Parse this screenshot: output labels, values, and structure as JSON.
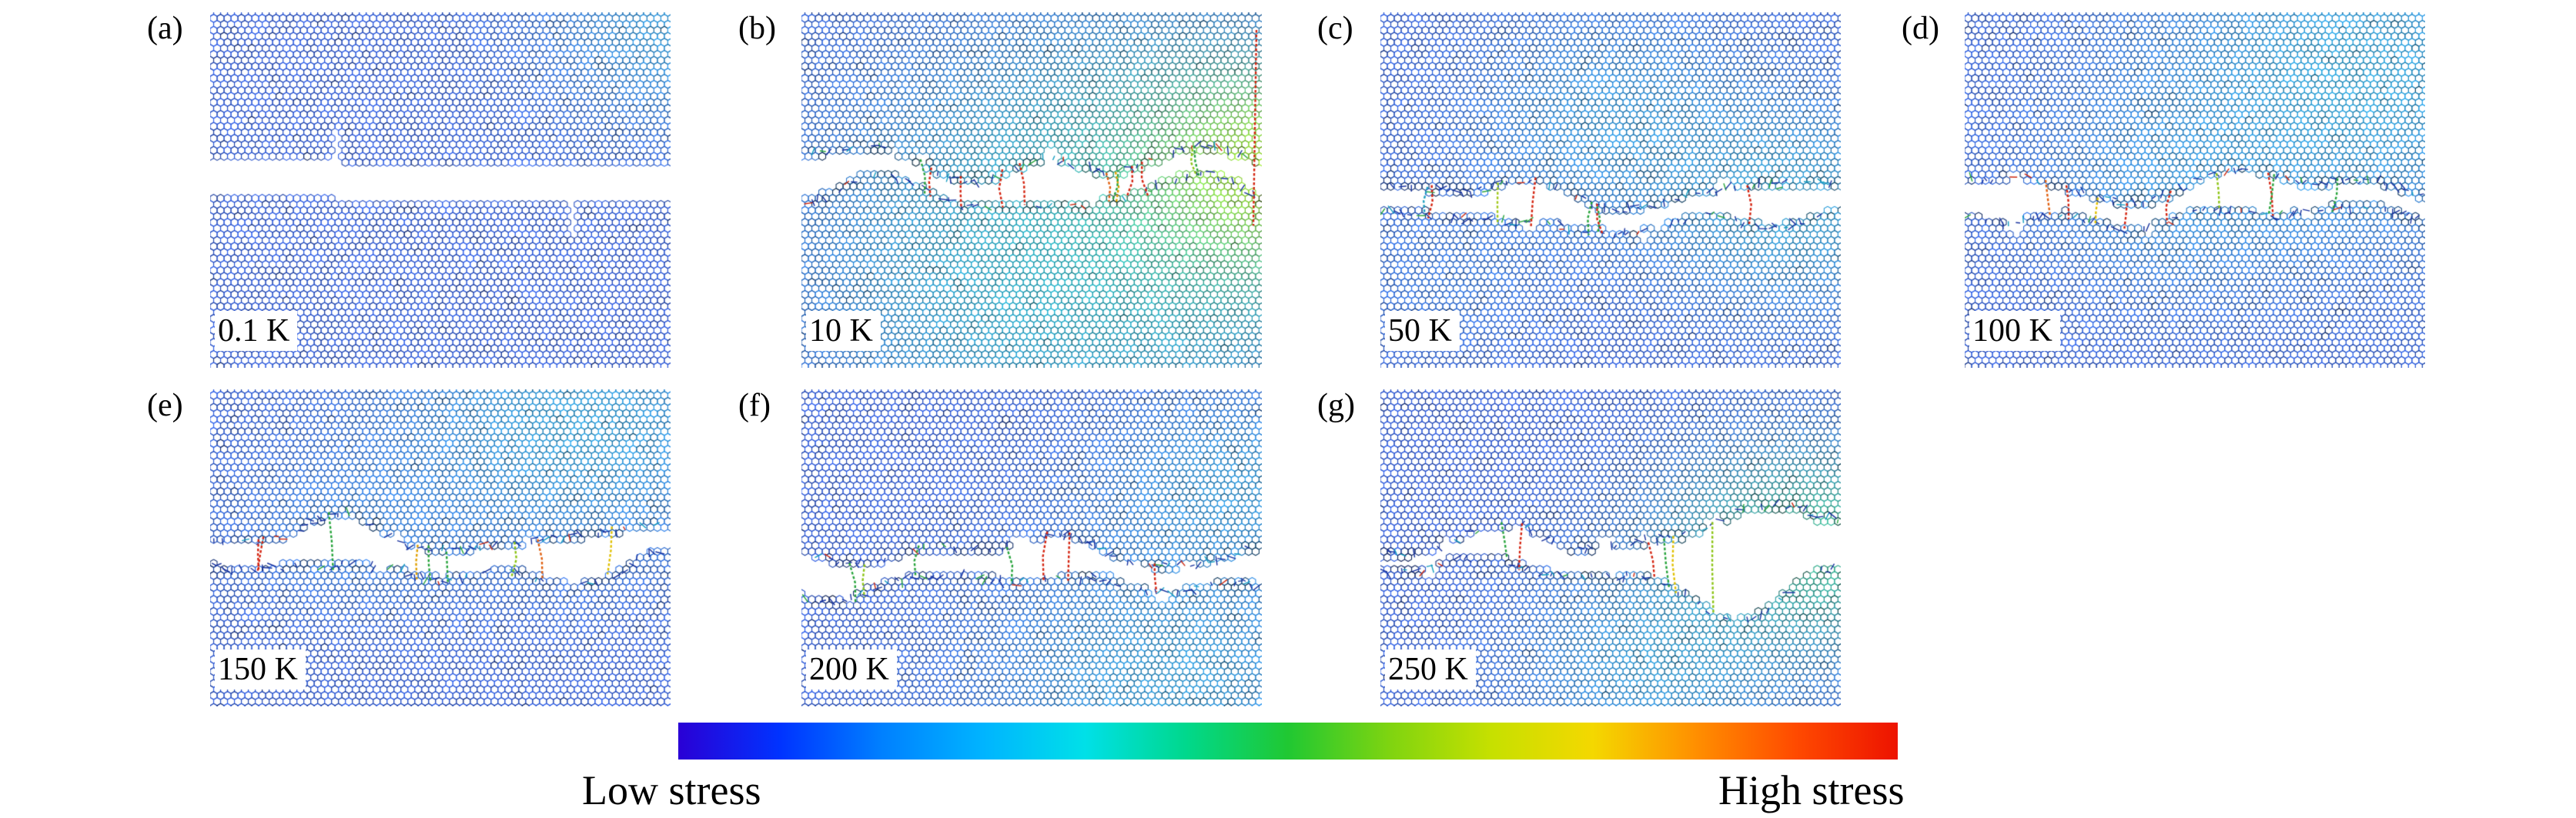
{
  "figure": {
    "panels": [
      {
        "tag": "(a)",
        "temperature": "0.1 K"
      },
      {
        "tag": "(b)",
        "temperature": "10 K"
      },
      {
        "tag": "(c)",
        "temperature": "50 K"
      },
      {
        "tag": "(d)",
        "temperature": "100 K"
      },
      {
        "tag": "(e)",
        "temperature": "150 K"
      },
      {
        "tag": "(f)",
        "temperature": "200 K"
      },
      {
        "tag": "(g)",
        "temperature": "250 K"
      }
    ],
    "colorbar": {
      "low_label": "Low stress",
      "high_label": "High stress",
      "gradient": [
        "#2a00d5",
        "#0033ff",
        "#0080ff",
        "#00b4ff",
        "#00e0e8",
        "#00d88c",
        "#20c832",
        "#7fd410",
        "#c6e000",
        "#f4d800",
        "#ff9000",
        "#ff4a00",
        "#ed1300"
      ]
    },
    "lattice_colors": {
      "low_stress_atom": "#2a52c4",
      "background": "#ffffff"
    }
  }
}
